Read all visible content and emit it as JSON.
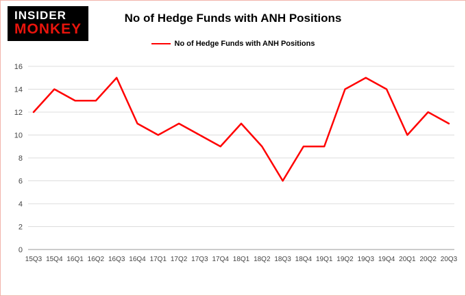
{
  "logo": {
    "line1": "INSIDER",
    "line2": "MONKEY"
  },
  "chart_data": {
    "type": "line",
    "title": "No of Hedge Funds with ANH Positions",
    "legend": "No of Hedge Funds with ANH Positions",
    "categories": [
      "15Q3",
      "15Q4",
      "16Q1",
      "16Q2",
      "16Q3",
      "16Q4",
      "17Q1",
      "17Q2",
      "17Q3",
      "17Q4",
      "18Q1",
      "18Q2",
      "18Q3",
      "18Q4",
      "19Q1",
      "19Q2",
      "19Q3",
      "19Q4",
      "20Q1",
      "20Q2",
      "20Q3"
    ],
    "values": [
      12,
      14,
      13,
      13,
      15,
      11,
      10,
      11,
      10,
      9,
      11,
      9,
      6,
      9,
      9,
      14,
      15,
      14,
      10,
      12,
      11
    ],
    "ylim": [
      0,
      16
    ],
    "ytick_step": 2,
    "line_color": "#ff0000",
    "grid_color": "#dcdcdc",
    "axis_color": "#999999",
    "tick_label_color": "#444444",
    "grid": true,
    "legend_position": "top"
  }
}
